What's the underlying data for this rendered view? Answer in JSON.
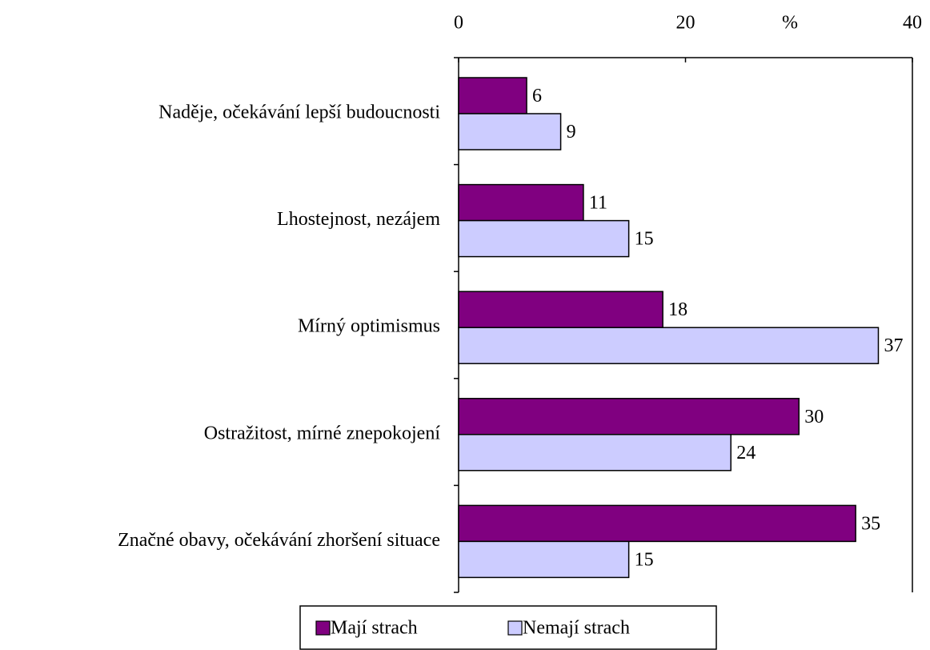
{
  "chart_data": {
    "type": "bar",
    "orientation": "horizontal",
    "categories": [
      "Naděje, očekávání lepší budoucnosti",
      "Lhostejnost, nezájem",
      "Mírný optimismus",
      "Ostražitost, mírné znepokojení",
      "Značné obavy, očekávání zhoršení situace"
    ],
    "series": [
      {
        "name": "Mají strach",
        "color": "#800080",
        "values": [
          6,
          11,
          18,
          30,
          35
        ]
      },
      {
        "name": "Nemají strach",
        "color": "#ccccff",
        "values": [
          9,
          15,
          37,
          24,
          15
        ]
      }
    ],
    "xlabel": "%",
    "xlim": [
      0,
      40
    ],
    "xticks": [
      0,
      20,
      40
    ]
  }
}
